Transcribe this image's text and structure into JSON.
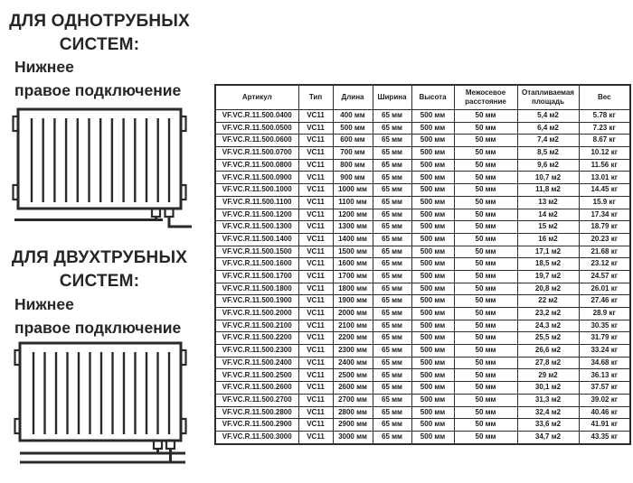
{
  "left_panel": {
    "section1": {
      "heading_line1": "ДЛЯ ОДНОТРУБНЫХ",
      "heading_line2": "СИСТЕМ:",
      "sub_line1": "Нижнее",
      "sub_line2": "правое подключение",
      "diagram": "radiator-single-pipe-bottom-right-connection"
    },
    "section2": {
      "heading_line1": "ДЛЯ ДВУХТРУБНЫХ",
      "heading_line2": "СИСТЕМ:",
      "sub_line1": "Нижнее",
      "sub_line2": "правое подключение",
      "diagram": "radiator-two-pipe-bottom-right-connection"
    }
  },
  "table": {
    "columns": [
      "Артикул",
      "Тип",
      "Длина",
      "Ширина",
      "Высота",
      "Межосевое расстояние",
      "Отапливаемая площадь",
      "Вес"
    ],
    "rows": [
      [
        "VF.VC.R.11.500.0400",
        "VC11",
        "400 мм",
        "65 мм",
        "500 мм",
        "50 мм",
        "5,4 м2",
        "5.78 кг"
      ],
      [
        "VF.VC.R.11.500.0500",
        "VC11",
        "500 мм",
        "65 мм",
        "500 мм",
        "50 мм",
        "6,4 м2",
        "7.23 кг"
      ],
      [
        "VF.VC.R.11.500.0600",
        "VC11",
        "600 мм",
        "65 мм",
        "500 мм",
        "50 мм",
        "7,4 м2",
        "8.67 кг"
      ],
      [
        "VF.VC.R.11.500.0700",
        "VC11",
        "700 мм",
        "65 мм",
        "500 мм",
        "50 мм",
        "8,5 м2",
        "10.12 кг"
      ],
      [
        "VF.VC.R.11.500.0800",
        "VC11",
        "800 мм",
        "65 мм",
        "500 мм",
        "50 мм",
        "9,6 м2",
        "11.56 кг"
      ],
      [
        "VF.VC.R.11.500.0900",
        "VC11",
        "900 мм",
        "65 мм",
        "500 мм",
        "50 мм",
        "10,7 м2",
        "13.01 кг"
      ],
      [
        "VF.VC.R.11.500.1000",
        "VC11",
        "1000 мм",
        "65 мм",
        "500 мм",
        "50 мм",
        "11,8 м2",
        "14.45 кг"
      ],
      [
        "VF.VC.R.11.500.1100",
        "VC11",
        "1100 мм",
        "65 мм",
        "500 мм",
        "50 мм",
        "13 м2",
        "15.9 кг"
      ],
      [
        "VF.VC.R.11.500.1200",
        "VC11",
        "1200 мм",
        "65 мм",
        "500 мм",
        "50 мм",
        "14 м2",
        "17.34 кг"
      ],
      [
        "VF.VC.R.11.500.1300",
        "VC11",
        "1300 мм",
        "65 мм",
        "500 мм",
        "50 мм",
        "15 м2",
        "18.79 кг"
      ],
      [
        "VF.VC.R.11.500.1400",
        "VC11",
        "1400 мм",
        "65 мм",
        "500 мм",
        "50 мм",
        "16 м2",
        "20.23 кг"
      ],
      [
        "VF.VC.R.11.500.1500",
        "VC11",
        "1500 мм",
        "65 мм",
        "500 мм",
        "50 мм",
        "17,1 м2",
        "21.68 кг"
      ],
      [
        "VF.VC.R.11.500.1600",
        "VC11",
        "1600 мм",
        "65 мм",
        "500 мм",
        "50 мм",
        "18,5 м2",
        "23.12 кг"
      ],
      [
        "VF.VC.R.11.500.1700",
        "VC11",
        "1700 мм",
        "65 мм",
        "500 мм",
        "50 мм",
        "19,7 м2",
        "24.57 кг"
      ],
      [
        "VF.VC.R.11.500.1800",
        "VC11",
        "1800 мм",
        "65 мм",
        "500 мм",
        "50 мм",
        "20,8 м2",
        "26.01 кг"
      ],
      [
        "VF.VC.R.11.500.1900",
        "VC11",
        "1900 мм",
        "65 мм",
        "500 мм",
        "50 мм",
        "22 м2",
        "27.46 кг"
      ],
      [
        "VF.VC.R.11.500.2000",
        "VC11",
        "2000 мм",
        "65 мм",
        "500 мм",
        "50 мм",
        "23,2 м2",
        "28.9 кг"
      ],
      [
        "VF.VC.R.11.500.2100",
        "VC11",
        "2100 мм",
        "65 мм",
        "500 мм",
        "50 мм",
        "24,3 м2",
        "30.35 кг"
      ],
      [
        "VF.VC.R.11.500.2200",
        "VC11",
        "2200 мм",
        "65 мм",
        "500 мм",
        "50 мм",
        "25,5 м2",
        "31.79 кг"
      ],
      [
        "VF.VC.R.11.500.2300",
        "VC11",
        "2300 мм",
        "65 мм",
        "500 мм",
        "50 мм",
        "26,6 м2",
        "33.24 кг"
      ],
      [
        "VF.VC.R.11.500.2400",
        "VC11",
        "2400 мм",
        "65 мм",
        "500 мм",
        "50 мм",
        "27,8 м2",
        "34.68 кг"
      ],
      [
        "VF.VC.R.11.500.2500",
        "VC11",
        "2500 мм",
        "65 мм",
        "500 мм",
        "50 мм",
        "29 м2",
        "36.13 кг"
      ],
      [
        "VF.VC.R.11.500.2600",
        "VC11",
        "2600 мм",
        "65 мм",
        "500 мм",
        "50 мм",
        "30,1 м2",
        "37.57 кг"
      ],
      [
        "VF.VC.R.11.500.2700",
        "VC11",
        "2700 мм",
        "65 мм",
        "500 мм",
        "50 мм",
        "31,3 м2",
        "39.02 кг"
      ],
      [
        "VF.VC.R.11.500.2800",
        "VC11",
        "2800 мм",
        "65 мм",
        "500 мм",
        "50 мм",
        "32,4 м2",
        "40.46 кг"
      ],
      [
        "VF.VC.R.11.500.2900",
        "VC11",
        "2900 мм",
        "65 мм",
        "500 мм",
        "50 мм",
        "33,6 м2",
        "41.91 кг"
      ],
      [
        "VF.VC.R.11.500.3000",
        "VC11",
        "3000 мм",
        "65 мм",
        "500 мм",
        "50 мм",
        "34,7 м2",
        "43.35 кг"
      ]
    ]
  }
}
